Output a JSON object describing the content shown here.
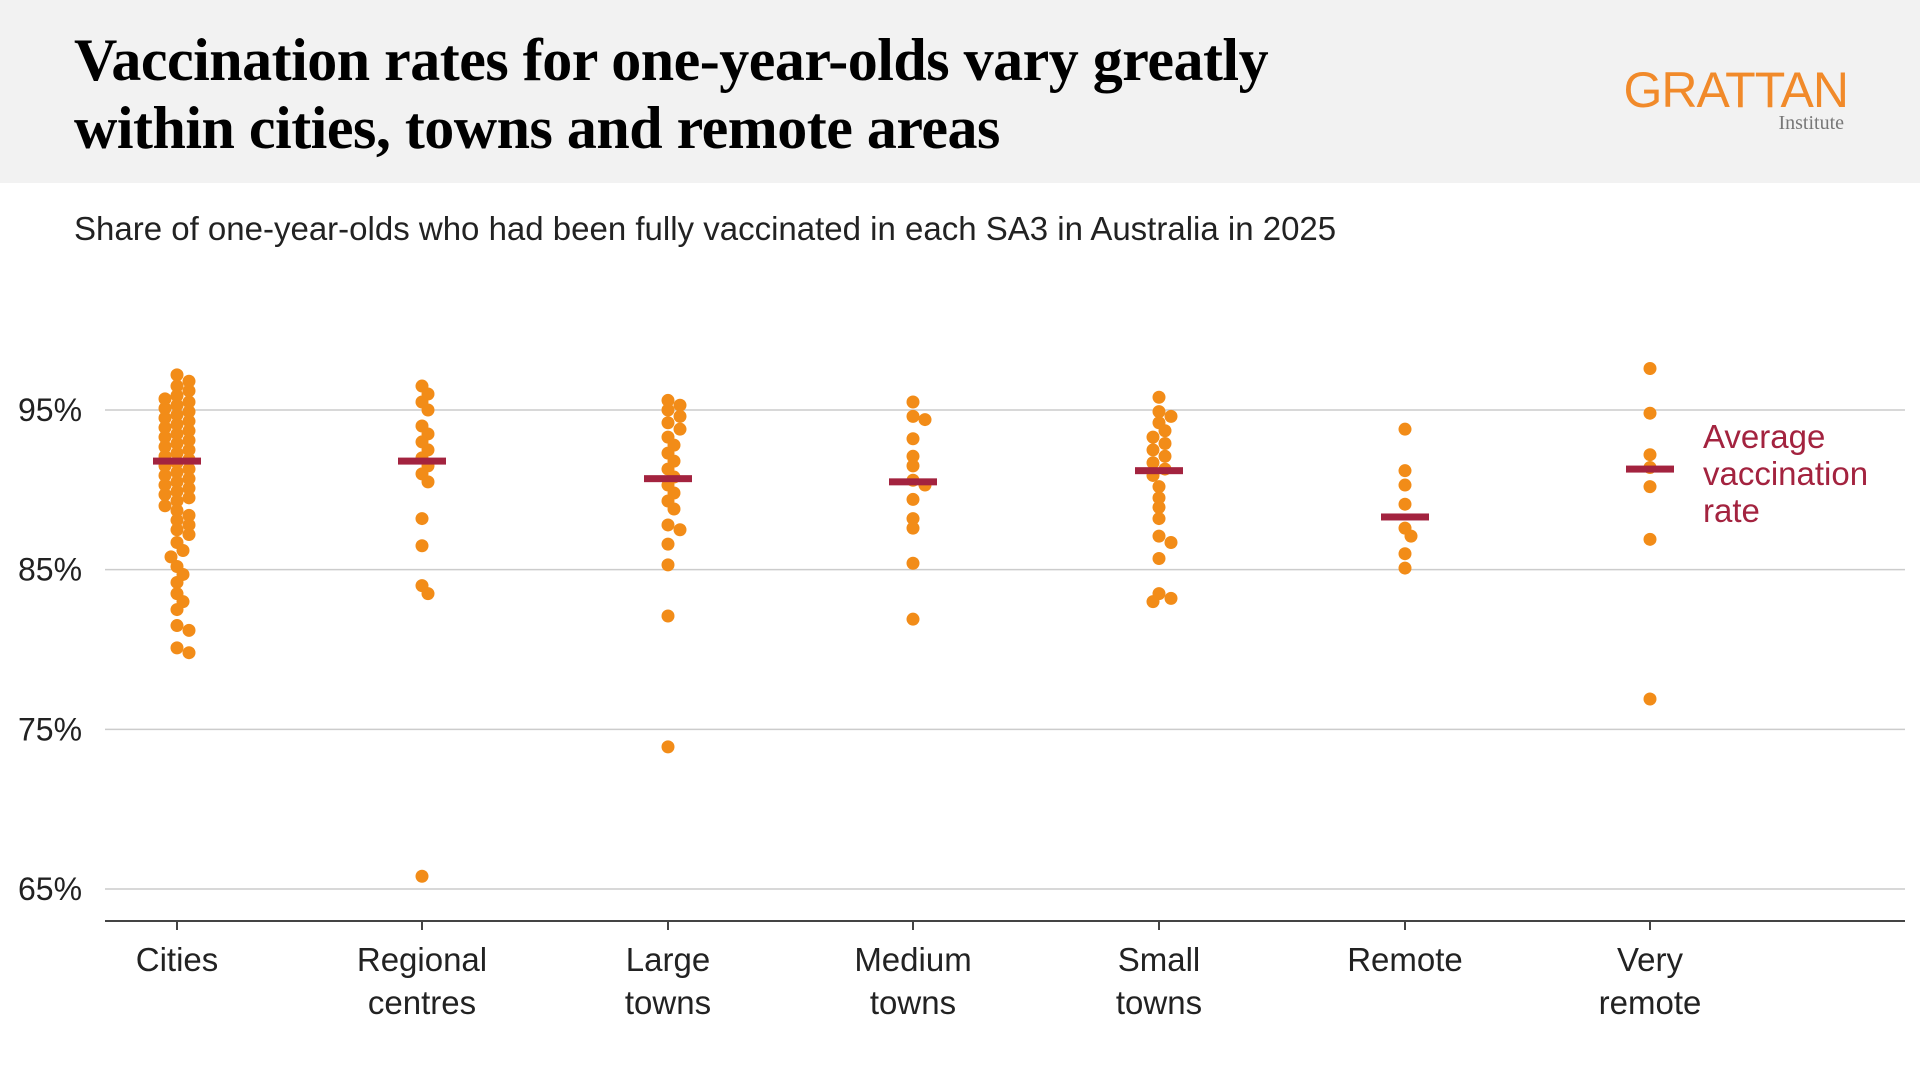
{
  "header": {
    "title_line1": "Vaccination rates for one-year-olds vary greatly",
    "title_line2": "within cities, towns and remote areas",
    "logo": "GRATTAN",
    "logo_sub": "Institute"
  },
  "subtitle": "Share of one-year-olds who had been fully vaccinated in each SA3 in Australia in 2025",
  "colors": {
    "points": "#f28c18",
    "average": "#a3233f",
    "gridline": "#cccccc",
    "axis": "#444444",
    "header_bg": "#f2f2f2",
    "logo": "#f18a2a"
  },
  "chart_data": {
    "type": "scatter",
    "ylim": [
      63,
      98
    ],
    "y_ticks": [
      65,
      75,
      85,
      95
    ],
    "y_tick_labels": [
      "65%",
      "75%",
      "85%",
      "95%"
    ],
    "grid": true,
    "annotation": [
      "Average",
      "vaccination",
      "rate"
    ],
    "categories": [
      {
        "label": [
          "Cities"
        ],
        "average": 91.8,
        "values": [
          97.2,
          96.8,
          96.5,
          96.2,
          95.9,
          95.7,
          95.5,
          95.3,
          95.1,
          94.9,
          94.7,
          94.5,
          94.3,
          94.1,
          93.9,
          93.7,
          93.5,
          93.3,
          93.1,
          92.9,
          92.7,
          92.5,
          92.3,
          92.1,
          91.9,
          91.7,
          91.5,
          91.3,
          91.1,
          90.9,
          90.7,
          90.5,
          90.3,
          90.1,
          89.9,
          89.7,
          89.5,
          89.3,
          89.0,
          88.7,
          88.4,
          88.1,
          87.8,
          87.5,
          87.2,
          86.7,
          86.2,
          85.8,
          85.2,
          84.7,
          84.2,
          83.5,
          83.0,
          82.5,
          81.5,
          81.2,
          80.1,
          79.8
        ]
      },
      {
        "label": [
          "Regional",
          "centres"
        ],
        "average": 91.8,
        "values": [
          96.5,
          96.0,
          95.5,
          95.0,
          94.0,
          93.5,
          93.0,
          92.5,
          92.0,
          91.5,
          91.0,
          90.5,
          88.2,
          86.5,
          84.0,
          83.5,
          65.8
        ]
      },
      {
        "label": [
          "Large",
          "towns"
        ],
        "average": 90.7,
        "values": [
          95.6,
          95.3,
          95.0,
          94.6,
          94.2,
          93.8,
          93.3,
          92.8,
          92.3,
          91.8,
          91.3,
          90.8,
          90.3,
          89.8,
          89.3,
          88.8,
          87.8,
          87.5,
          86.6,
          85.3,
          82.1,
          73.9
        ]
      },
      {
        "label": [
          "Medium",
          "towns"
        ],
        "average": 90.5,
        "values": [
          95.5,
          94.6,
          94.4,
          93.2,
          92.1,
          91.5,
          90.6,
          90.3,
          89.4,
          88.2,
          87.6,
          85.4,
          81.9
        ]
      },
      {
        "label": [
          "Small",
          "towns"
        ],
        "average": 91.2,
        "values": [
          95.8,
          94.9,
          94.6,
          94.2,
          93.7,
          93.3,
          92.9,
          92.5,
          92.1,
          91.7,
          91.3,
          90.9,
          90.2,
          89.5,
          88.9,
          88.2,
          87.1,
          86.7,
          85.7,
          83.5,
          83.2,
          83.0
        ]
      },
      {
        "label": [
          "Remote"
        ],
        "average": 88.3,
        "values": [
          93.8,
          91.2,
          90.3,
          89.1,
          87.6,
          87.1,
          86.0,
          85.1
        ]
      },
      {
        "label": [
          "Very",
          "remote"
        ],
        "average": 91.3,
        "values": [
          97.6,
          94.8,
          92.2,
          91.4,
          90.2,
          86.9,
          76.9
        ]
      }
    ]
  }
}
